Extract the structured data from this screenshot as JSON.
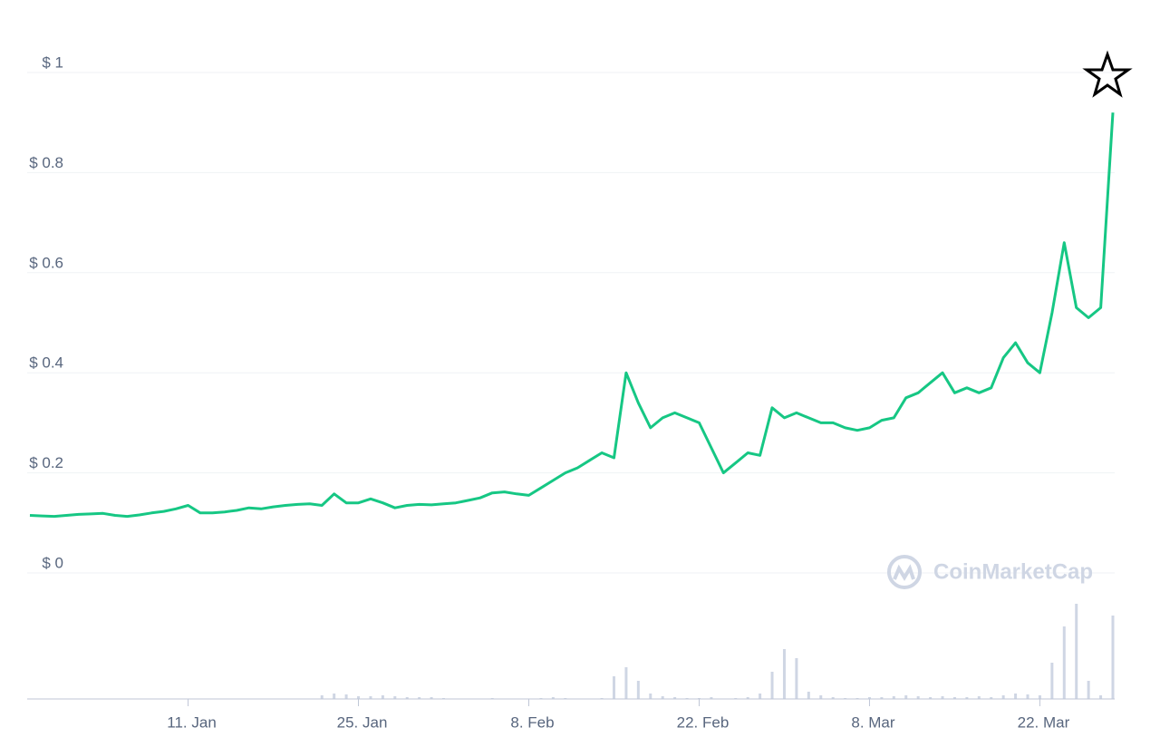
{
  "chart_data": {
    "type": "line",
    "categories": [
      null,
      null,
      null,
      null,
      null,
      null,
      null,
      null,
      null,
      null,
      null,
      null,
      null,
      "11. Jan",
      null,
      null,
      null,
      null,
      null,
      null,
      null,
      null,
      null,
      null,
      null,
      null,
      null,
      "25. Jan",
      null,
      null,
      null,
      null,
      null,
      null,
      null,
      null,
      null,
      null,
      null,
      null,
      null,
      "8. Feb",
      null,
      null,
      null,
      null,
      null,
      null,
      null,
      null,
      null,
      null,
      null,
      null,
      null,
      "22. Feb",
      null,
      null,
      null,
      null,
      null,
      null,
      null,
      null,
      null,
      null,
      null,
      null,
      null,
      "8. Mar",
      null,
      null,
      null,
      null,
      null,
      null,
      null,
      null,
      null,
      null,
      null,
      null,
      null,
      "22. Mar",
      null,
      null,
      null,
      null,
      null,
      null
    ],
    "series": [
      {
        "color": "#16c784",
        "values": [
          0.115,
          0.114,
          0.113,
          0.115,
          0.117,
          0.118,
          0.119,
          0.115,
          0.113,
          0.116,
          0.12,
          0.123,
          0.128,
          0.135,
          0.12,
          0.12,
          0.122,
          0.125,
          0.13,
          0.128,
          0.132,
          0.135,
          0.137,
          0.138,
          0.135,
          0.158,
          0.14,
          0.14,
          0.148,
          0.14,
          0.13,
          0.135,
          0.137,
          0.136,
          0.138,
          0.14,
          0.145,
          0.15,
          0.16,
          0.162,
          0.158,
          0.155,
          0.17,
          0.185,
          0.2,
          0.21,
          0.225,
          0.24,
          0.23,
          0.4,
          0.34,
          0.29,
          0.31,
          0.32,
          0.31,
          0.3,
          0.25,
          0.2,
          0.22,
          0.24,
          0.235,
          0.33,
          0.31,
          0.32,
          0.31,
          0.3,
          0.3,
          0.29,
          0.285,
          0.29,
          0.305,
          0.31,
          0.35,
          0.36,
          0.38,
          0.4,
          0.36,
          0.37,
          0.36,
          0.37,
          0.43,
          0.46,
          0.42,
          0.4,
          0.52,
          0.66,
          0.53,
          0.51,
          0.53,
          0.92
        ]
      }
    ],
    "volume": {
      "color": "#cfd6e4",
      "ylim": [
        0,
        110
      ],
      "values": [
        0,
        0,
        0,
        0,
        0,
        0,
        0,
        0,
        0,
        0,
        0,
        0,
        0,
        0,
        0,
        0,
        0,
        0,
        0,
        0,
        0,
        0,
        0,
        0,
        4,
        6,
        5,
        3,
        3,
        4,
        3,
        2,
        2,
        2,
        1,
        0,
        0,
        0,
        1,
        0,
        0,
        0,
        1,
        2,
        1,
        0,
        0,
        1,
        25,
        35,
        20,
        6,
        3,
        2,
        1,
        1,
        2,
        0,
        1,
        2,
        6,
        30,
        55,
        45,
        8,
        4,
        2,
        1,
        1,
        2,
        2,
        3,
        4,
        3,
        2,
        3,
        2,
        2,
        3,
        2,
        4,
        6,
        5,
        4,
        40,
        80,
        105,
        20,
        4,
        92
      ]
    },
    "ylim": [
      0,
      1
    ],
    "yticks": [
      {
        "value": 0,
        "label": "$ 0"
      },
      {
        "value": 0.2,
        "label": "$ 0.2"
      },
      {
        "value": 0.4,
        "label": "$ 0.4"
      },
      {
        "value": 0.6,
        "label": "$ 0.6"
      },
      {
        "value": 0.8,
        "label": "$ 0.8"
      },
      {
        "value": 1,
        "label": "$ 1"
      }
    ],
    "grid": true,
    "watermark": "CoinMarketCap"
  }
}
